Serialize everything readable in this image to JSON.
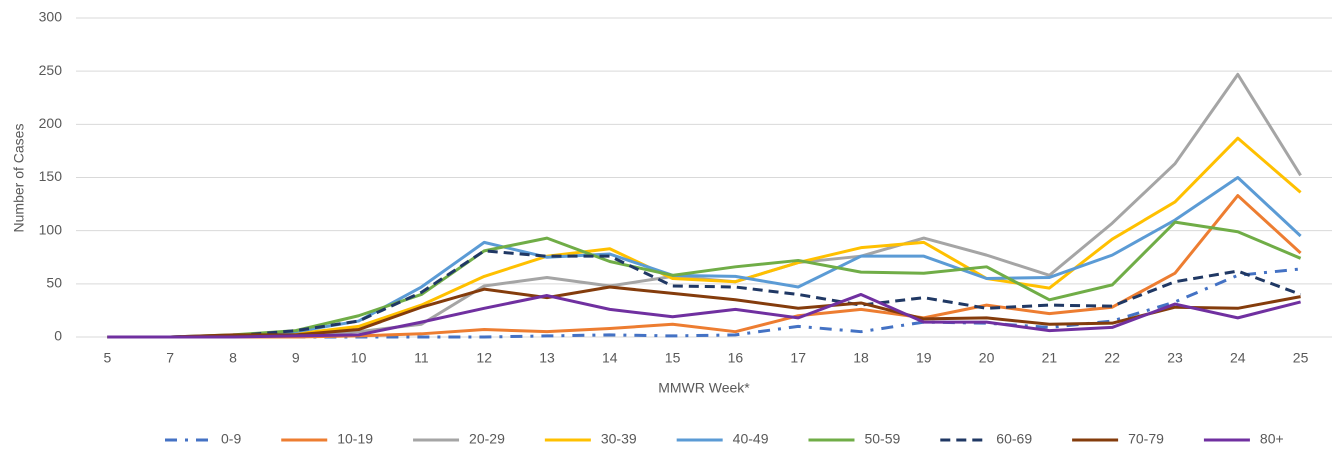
{
  "chart_data": {
    "type": "line",
    "x_label": "MMWR Week*",
    "y_label": "Number of Cases",
    "categories": [
      "5",
      "7",
      "8",
      "9",
      "10",
      "11",
      "12",
      "13",
      "14",
      "15",
      "16",
      "17",
      "18",
      "19",
      "20",
      "21",
      "22",
      "23",
      "24",
      "25"
    ],
    "ylim": [
      0,
      300
    ],
    "yticks": [
      0,
      50,
      100,
      150,
      200,
      250,
      300
    ],
    "grid": true,
    "legend": "bottom",
    "series": [
      {
        "name": "0-9",
        "color": "#4472c4",
        "dash": "dash-dot",
        "values": [
          0,
          0,
          0,
          0,
          0,
          0,
          0,
          1,
          2,
          1,
          2,
          10,
          5,
          14,
          13,
          9,
          15,
          33,
          58,
          64
        ]
      },
      {
        "name": "10-19",
        "color": "#ed7d31",
        "dash": "solid",
        "values": [
          0,
          0,
          0,
          0,
          1,
          3,
          7,
          5,
          8,
          12,
          5,
          20,
          26,
          18,
          30,
          22,
          28,
          60,
          133,
          79
        ]
      },
      {
        "name": "20-29",
        "color": "#a5a5a5",
        "dash": "solid",
        "values": [
          0,
          0,
          1,
          2,
          5,
          12,
          48,
          56,
          48,
          57,
          52,
          70,
          76,
          93,
          77,
          58,
          107,
          163,
          247,
          152
        ]
      },
      {
        "name": "30-39",
        "color": "#ffc000",
        "dash": "solid",
        "values": [
          0,
          0,
          1,
          3,
          10,
          30,
          57,
          76,
          83,
          55,
          52,
          70,
          84,
          89,
          55,
          46,
          92,
          127,
          187,
          136
        ]
      },
      {
        "name": "40-49",
        "color": "#5b9bd5",
        "dash": "solid",
        "values": [
          0,
          0,
          1,
          5,
          15,
          47,
          89,
          75,
          78,
          58,
          57,
          47,
          76,
          76,
          55,
          56,
          77,
          110,
          150,
          95
        ]
      },
      {
        "name": "50-59",
        "color": "#70ad47",
        "dash": "solid",
        "values": [
          0,
          0,
          2,
          6,
          20,
          40,
          81,
          93,
          71,
          58,
          66,
          72,
          61,
          60,
          66,
          35,
          49,
          108,
          99,
          74
        ]
      },
      {
        "name": "60-69",
        "color": "#203864",
        "dash": "dash",
        "values": [
          0,
          0,
          1,
          6,
          15,
          42,
          81,
          76,
          76,
          48,
          47,
          40,
          30,
          37,
          27,
          30,
          29,
          52,
          62,
          40
        ]
      },
      {
        "name": "70-79",
        "color": "#843c0c",
        "dash": "solid",
        "values": [
          0,
          0,
          2,
          2,
          7,
          28,
          45,
          37,
          47,
          41,
          35,
          27,
          32,
          17,
          18,
          12,
          13,
          28,
          27,
          38
        ]
      },
      {
        "name": "80+",
        "color": "#7030a0",
        "dash": "solid",
        "values": [
          0,
          0,
          0,
          1,
          2,
          14,
          27,
          39,
          26,
          19,
          26,
          18,
          40,
          14,
          14,
          6,
          9,
          31,
          18,
          33
        ]
      }
    ]
  }
}
